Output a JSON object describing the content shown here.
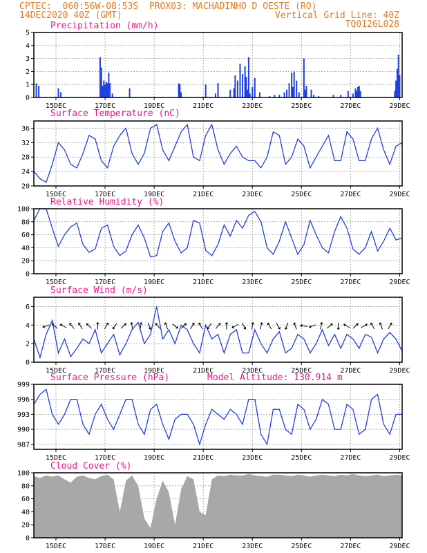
{
  "header": {
    "line1_left": "CPTEC:  060:56W-08:53S  PROX03: MACHADINHO D OESTE (RO)",
    "line2_left": "14DEC2020 40Z (GMT)",
    "line2_right": "Vertical Grid Line: 40Z",
    "line3_right": "TQ0126L028"
  },
  "colors": {
    "header": "#e07b1f",
    "title": "#e8158c",
    "series": "#1f3fe0",
    "cloud": "#a8a8a8"
  },
  "x_ticks": [
    "15DEC",
    "17DEC",
    "19DEC",
    "21DEC",
    "23DEC",
    "25DEC",
    "27DEC",
    "29DEC"
  ],
  "chart_data": [
    {
      "type": "bar",
      "title": "Precipitation (mm/h)",
      "ylim": [
        0,
        5
      ],
      "yticks": [
        0,
        1,
        2,
        3,
        4,
        5
      ],
      "x_range_days": [
        0,
        15
      ],
      "x": [
        0.1,
        0.2,
        1.0,
        1.1,
        2.7,
        2.75,
        2.8,
        2.85,
        2.9,
        2.95,
        3.0,
        3.05,
        3.1,
        3.2,
        3.9,
        5.9,
        5.95,
        6.0,
        7.0,
        7.4,
        7.5,
        8.0,
        8.15,
        8.2,
        8.3,
        8.4,
        8.5,
        8.6,
        8.65,
        8.7,
        8.75,
        8.8,
        8.9,
        9.0,
        9.2,
        9.6,
        9.8,
        10.0,
        10.2,
        10.3,
        10.4,
        10.5,
        10.55,
        10.6,
        10.7,
        10.8,
        11.0,
        11.05,
        11.1,
        11.3,
        11.4,
        11.6,
        12.2,
        12.5,
        12.8,
        13.0,
        13.1,
        13.15,
        13.2,
        13.25,
        13.3,
        14.7,
        14.75,
        14.8,
        14.85,
        14.9
      ],
      "values": [
        1.1,
        0.9,
        0.7,
        0.4,
        3.1,
        2.3,
        0.9,
        1.3,
        1.0,
        1.2,
        1.1,
        1.9,
        1.1,
        0.3,
        0.7,
        1.1,
        1.0,
        0.4,
        1.0,
        0.3,
        1.1,
        0.6,
        0.7,
        1.7,
        1.3,
        2.6,
        1.8,
        2.4,
        1.6,
        0.6,
        3.1,
        0.3,
        0.8,
        1.5,
        0.4,
        0.1,
        0.2,
        0.2,
        0.4,
        0.6,
        1.1,
        1.9,
        0.8,
        2.0,
        1.3,
        0.4,
        3.0,
        0.6,
        0.9,
        0.6,
        0.2,
        0.1,
        0.2,
        0.2,
        0.5,
        0.3,
        0.7,
        0.5,
        0.8,
        0.9,
        0.5,
        0.5,
        1.3,
        2.2,
        3.3,
        1.7
      ]
    },
    {
      "type": "line",
      "title": "Surface Temperature (nC)",
      "ylim": [
        20,
        38
      ],
      "yticks": [
        20,
        24,
        28,
        32,
        36
      ],
      "x_range_days": [
        0,
        15
      ],
      "x": [
        0,
        0.25,
        0.5,
        0.75,
        1,
        1.25,
        1.5,
        1.75,
        2,
        2.25,
        2.5,
        2.75,
        3,
        3.25,
        3.5,
        3.75,
        4,
        4.25,
        4.5,
        4.75,
        5,
        5.25,
        5.5,
        5.75,
        6,
        6.25,
        6.5,
        6.75,
        7,
        7.25,
        7.5,
        7.75,
        8,
        8.25,
        8.5,
        8.75,
        9,
        9.25,
        9.5,
        9.75,
        10,
        10.25,
        10.5,
        10.75,
        11,
        11.25,
        11.5,
        11.75,
        12,
        12.25,
        12.5,
        12.75,
        13,
        13.25,
        13.5,
        13.75,
        14,
        14.25,
        14.5,
        14.75,
        15
      ],
      "values": [
        24,
        22,
        21,
        26,
        32,
        30,
        26,
        25,
        29,
        34,
        33,
        27,
        25,
        31,
        34,
        36,
        29,
        26,
        29,
        36,
        37,
        30,
        27,
        31,
        35,
        37,
        28,
        27,
        34,
        37,
        30,
        26,
        29,
        31,
        28,
        27,
        27,
        25,
        28,
        35,
        34,
        26,
        28,
        33,
        31,
        25,
        28,
        31,
        34,
        27,
        27,
        35,
        33,
        27,
        27,
        33,
        36,
        30,
        26,
        31,
        32
      ]
    },
    {
      "type": "line",
      "title": "Relative Humidity (%)",
      "ylim": [
        0,
        100
      ],
      "yticks": [
        0,
        20,
        40,
        60,
        80,
        100
      ],
      "x_range_days": [
        0,
        15
      ],
      "x": [
        0,
        0.25,
        0.5,
        0.75,
        1,
        1.25,
        1.5,
        1.75,
        2,
        2.25,
        2.5,
        2.75,
        3,
        3.25,
        3.5,
        3.75,
        4,
        4.25,
        4.5,
        4.75,
        5,
        5.25,
        5.5,
        5.75,
        6,
        6.25,
        6.5,
        6.75,
        7,
        7.25,
        7.5,
        7.75,
        8,
        8.25,
        8.5,
        8.75,
        9,
        9.25,
        9.5,
        9.75,
        10,
        10.25,
        10.5,
        10.75,
        11,
        11.25,
        11.5,
        11.75,
        12,
        12.25,
        12.5,
        12.75,
        13,
        13.25,
        13.5,
        13.75,
        14,
        14.25,
        14.5,
        14.75,
        15
      ],
      "values": [
        82,
        100,
        100,
        70,
        42,
        60,
        72,
        78,
        45,
        33,
        38,
        70,
        75,
        42,
        28,
        35,
        60,
        75,
        55,
        26,
        28,
        65,
        78,
        50,
        32,
        40,
        82,
        78,
        36,
        28,
        45,
        75,
        58,
        82,
        70,
        90,
        96,
        80,
        40,
        30,
        50,
        80,
        55,
        30,
        45,
        82,
        60,
        40,
        32,
        65,
        88,
        70,
        38,
        30,
        40,
        65,
        35,
        50,
        70,
        52,
        55
      ]
    },
    {
      "type": "line",
      "title": "Surface Wind (m/s)",
      "ylim": [
        0,
        7
      ],
      "yticks": [
        0,
        2,
        4,
        6
      ],
      "x_range_days": [
        0,
        15
      ],
      "x": [
        0,
        0.25,
        0.5,
        0.75,
        1,
        1.25,
        1.5,
        1.75,
        2,
        2.25,
        2.5,
        2.75,
        3,
        3.25,
        3.5,
        3.75,
        4,
        4.25,
        4.5,
        4.75,
        5,
        5.25,
        5.5,
        5.75,
        6,
        6.25,
        6.5,
        6.75,
        7,
        7.25,
        7.5,
        7.75,
        8,
        8.25,
        8.5,
        8.75,
        9,
        9.25,
        9.5,
        9.75,
        10,
        10.25,
        10.5,
        10.75,
        11,
        11.25,
        11.5,
        11.75,
        12,
        12.25,
        12.5,
        12.75,
        13,
        13.25,
        13.5,
        13.75,
        14,
        14.25,
        14.5,
        14.75,
        15
      ],
      "values": [
        2.5,
        0.5,
        3,
        4.5,
        1,
        2.5,
        0.6,
        1.5,
        2.5,
        2,
        3.5,
        1,
        2,
        3,
        0.8,
        2,
        3.5,
        4.3,
        2,
        3,
        6,
        2.5,
        3.5,
        2,
        4,
        3.5,
        2,
        1,
        4,
        2.5,
        3,
        1,
        3,
        3.5,
        1,
        1,
        3.5,
        2,
        1,
        2.5,
        3.3,
        1,
        1.5,
        3,
        2.5,
        1,
        2,
        3.5,
        1.8,
        3,
        1.5,
        3,
        2.5,
        1.5,
        3,
        2.7,
        1,
        2.5,
        3.2,
        2.5,
        1.2
      ],
      "arrow_dirs_deg": [
        200,
        135,
        150,
        130,
        120,
        135,
        90,
        60,
        235,
        45,
        100,
        80,
        290,
        130,
        110,
        320,
        45,
        60,
        120,
        235,
        50,
        90,
        210,
        300,
        80,
        75,
        120,
        300,
        250,
        110,
        170,
        200,
        80,
        40,
        270,
        150,
        45,
        30,
        120,
        110,
        60
      ]
    },
    {
      "type": "line",
      "title": "Surface Pressure (hPa)",
      "annotation": "Model Altitude: 130.914 m",
      "ylim": [
        986,
        999
      ],
      "yticks": [
        987,
        990,
        993,
        996,
        999
      ],
      "x_range_days": [
        0,
        15
      ],
      "x": [
        0,
        0.25,
        0.5,
        0.75,
        1,
        1.25,
        1.5,
        1.75,
        2,
        2.25,
        2.5,
        2.75,
        3,
        3.25,
        3.5,
        3.75,
        4,
        4.25,
        4.5,
        4.75,
        5,
        5.25,
        5.5,
        5.75,
        6,
        6.25,
        6.5,
        6.75,
        7,
        7.25,
        7.5,
        7.75,
        8,
        8.25,
        8.5,
        8.75,
        9,
        9.25,
        9.5,
        9.75,
        10,
        10.25,
        10.5,
        10.75,
        11,
        11.25,
        11.5,
        11.75,
        12,
        12.25,
        12.5,
        12.75,
        13,
        13.25,
        13.5,
        13.75,
        14,
        14.25,
        14.5,
        14.75,
        15
      ],
      "values": [
        995,
        997,
        998,
        993,
        991,
        993,
        996,
        996,
        991,
        989,
        993,
        995,
        992,
        990,
        993,
        996,
        996,
        991,
        989,
        994,
        995,
        991,
        988,
        992,
        993,
        993,
        991,
        987,
        991,
        994,
        993,
        992,
        994,
        993,
        991,
        996,
        996,
        989,
        987,
        994,
        994,
        990,
        989,
        995,
        994,
        990,
        992,
        996,
        995,
        990,
        990,
        995,
        994,
        989,
        990,
        996,
        997,
        991,
        989,
        993,
        993
      ]
    },
    {
      "type": "area",
      "title": "Cloud Cover (%)",
      "ylim": [
        0,
        100
      ],
      "yticks": [
        0,
        20,
        40,
        60,
        80,
        100
      ],
      "x_range_days": [
        0,
        15
      ],
      "x": [
        0,
        0.25,
        0.5,
        0.75,
        1,
        1.25,
        1.5,
        1.75,
        2,
        2.25,
        2.5,
        2.75,
        3,
        3.25,
        3.5,
        3.75,
        4,
        4.25,
        4.5,
        4.75,
        5,
        5.25,
        5.5,
        5.75,
        6,
        6.25,
        6.5,
        6.75,
        7,
        7.25,
        7.5,
        7.75,
        8,
        8.25,
        8.5,
        8.75,
        9,
        9.25,
        9.5,
        9.75,
        10,
        10.25,
        10.5,
        10.75,
        11,
        11.25,
        11.5,
        11.75,
        12,
        12.25,
        12.5,
        12.75,
        13,
        13.25,
        13.5,
        13.75,
        14,
        14.25,
        14.5,
        14.75,
        15
      ],
      "values": [
        95,
        92,
        96,
        94,
        96,
        90,
        85,
        94,
        96,
        92,
        90,
        95,
        97,
        90,
        40,
        88,
        96,
        80,
        30,
        15,
        60,
        88,
        70,
        20,
        75,
        95,
        90,
        40,
        35,
        90,
        96,
        95,
        97,
        96,
        96,
        98,
        96,
        95,
        94,
        97,
        97,
        96,
        95,
        97,
        96,
        94,
        96,
        97,
        96,
        95,
        97,
        96,
        98,
        96,
        95,
        96,
        97,
        95,
        96,
        97,
        96
      ]
    }
  ]
}
